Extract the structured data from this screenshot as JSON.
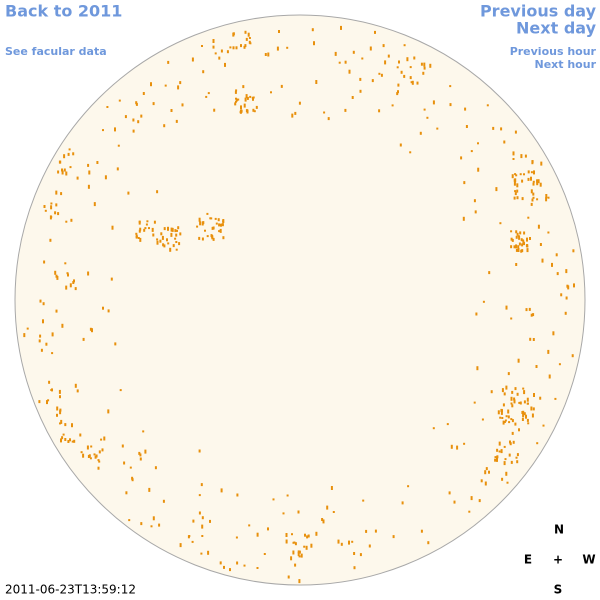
{
  "links": {
    "back": "Back to 2011",
    "facular": "See facular data",
    "previous_day": "Previous day",
    "next_day": "Next day",
    "previous_hour": "Previous hour",
    "next_hour": "Next hour"
  },
  "compass": {
    "north": "N",
    "east": "E",
    "center": "+",
    "west": "W",
    "south": "S"
  },
  "timestamp": "2011-06-23T13:59:12"
}
